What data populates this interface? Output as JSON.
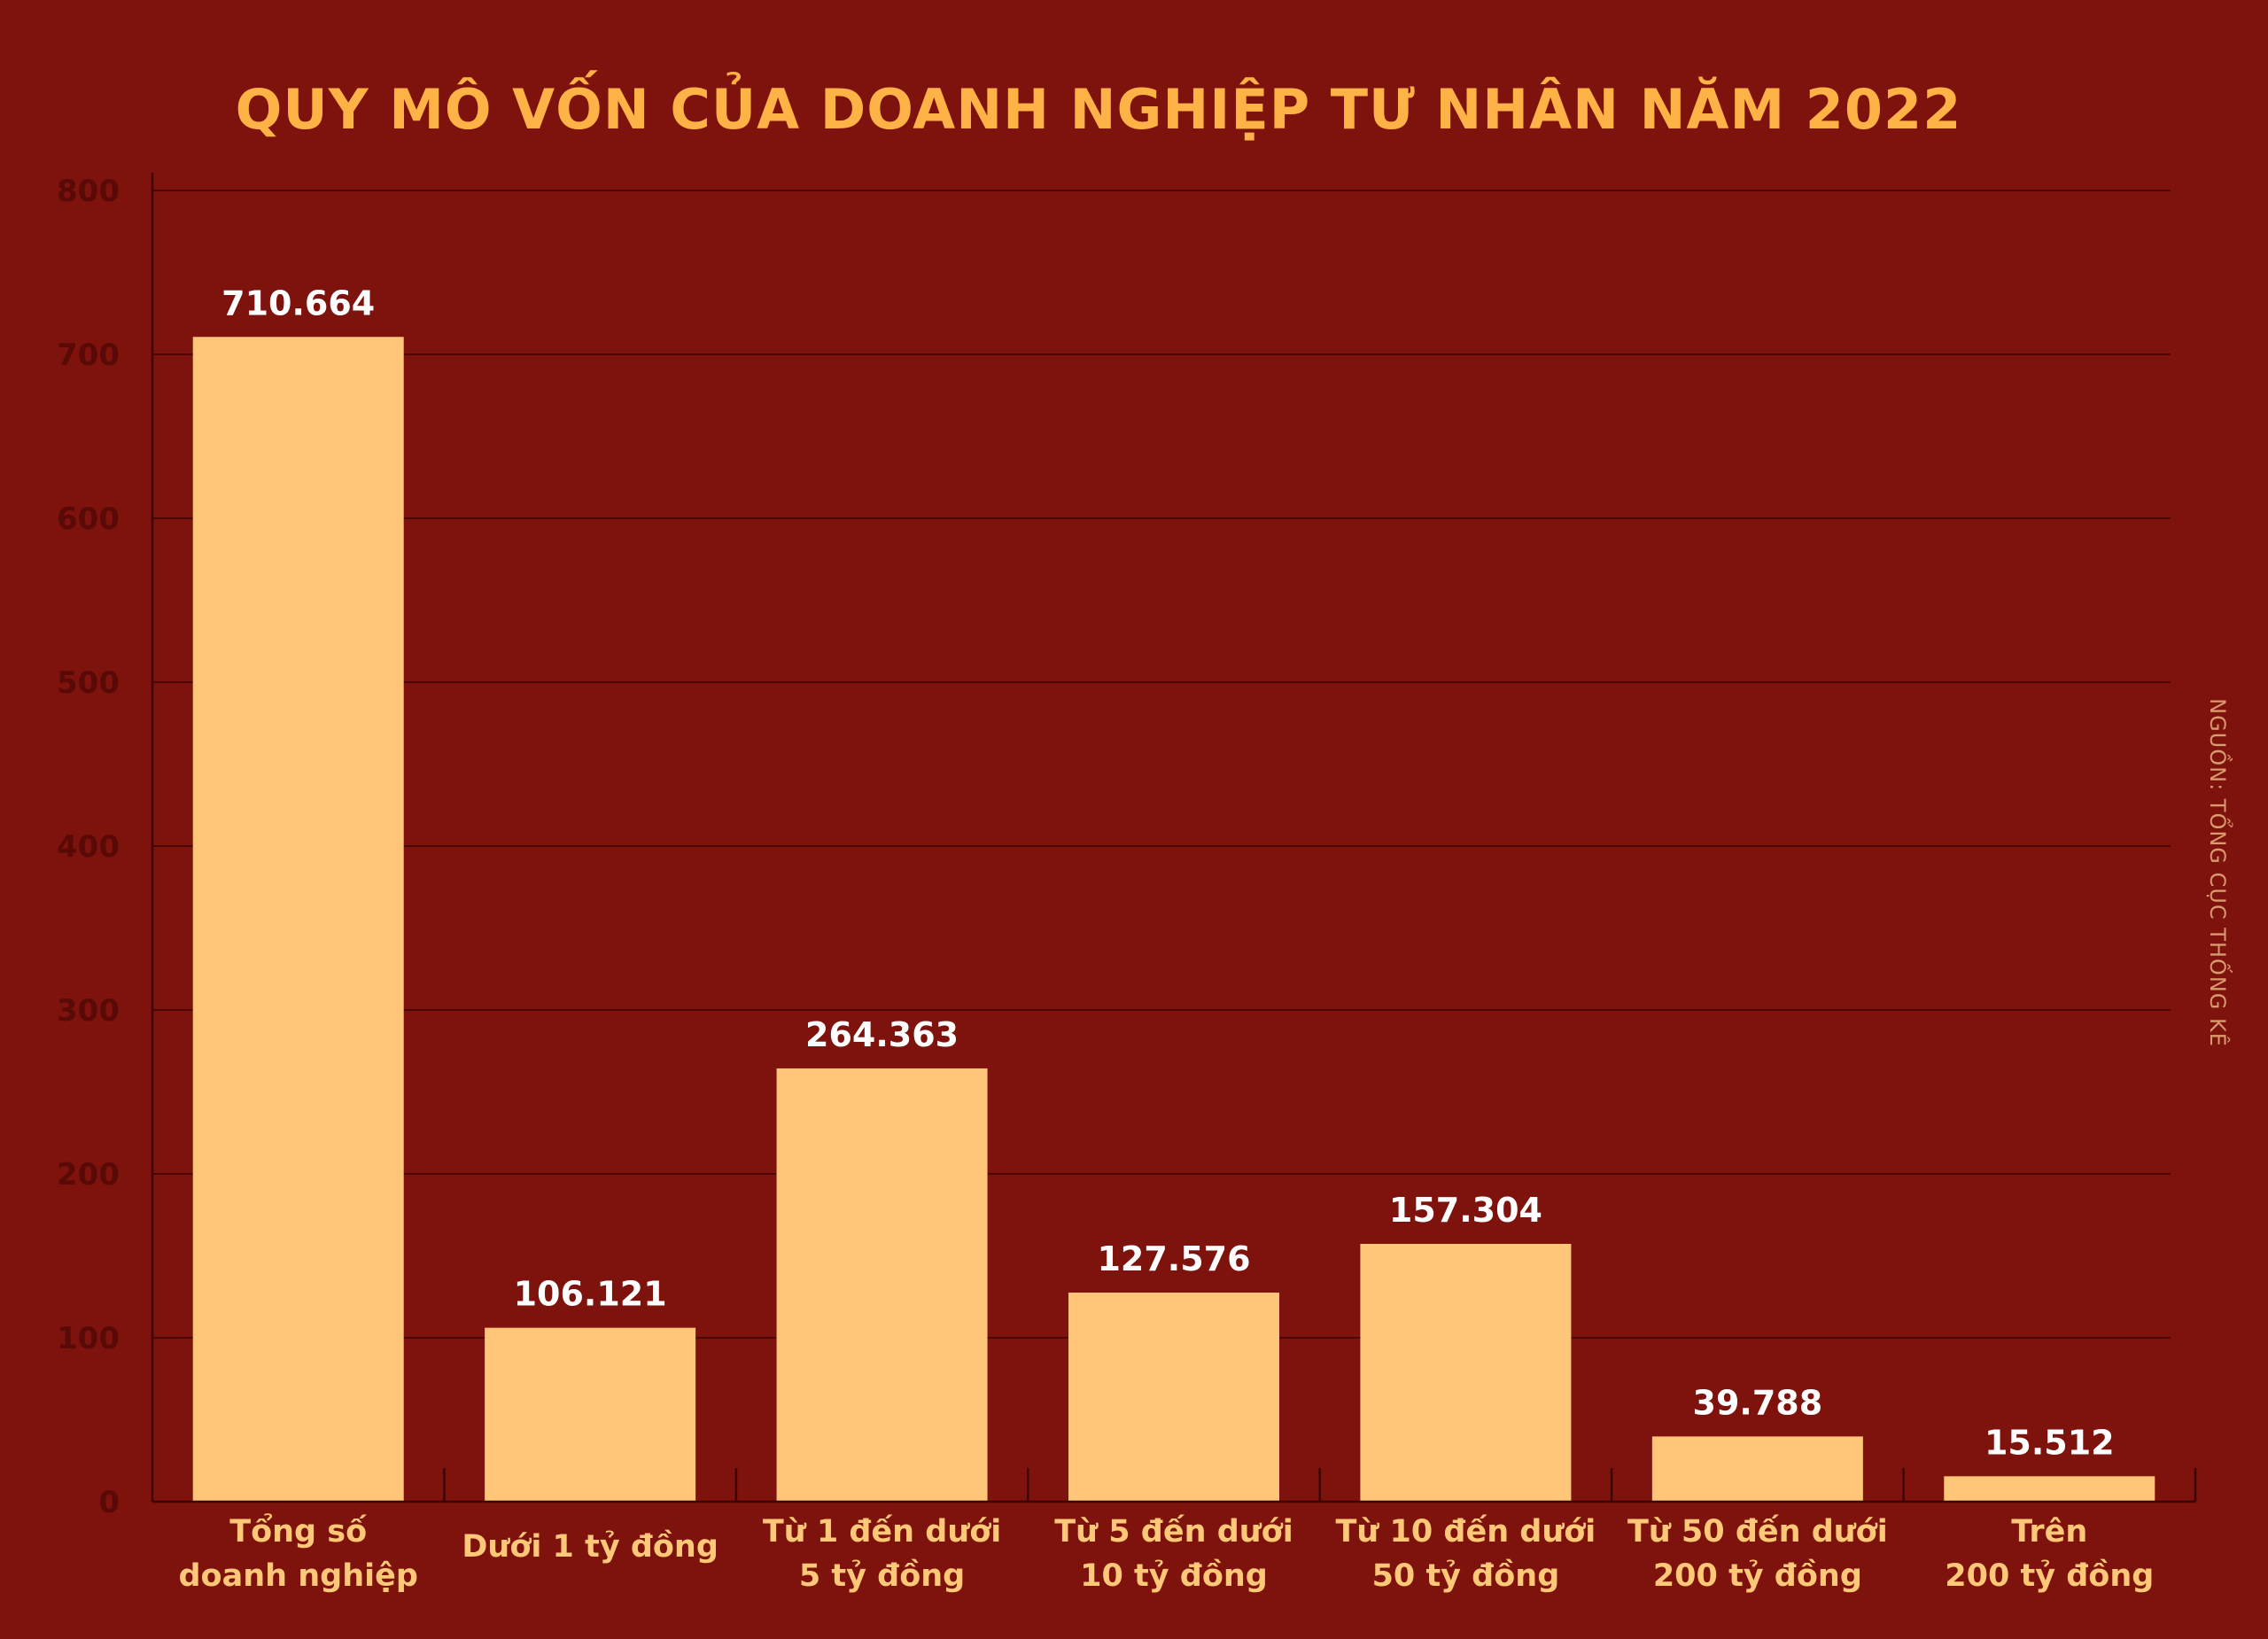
{
  "chart_data": {
    "type": "bar",
    "title": "QUY MÔ VỐN CỦA DOANH NGHIỆP TƯ NHÂN NĂM 2022",
    "categories": [
      [
        "Tổng số",
        "doanh nghiệp"
      ],
      [
        "Dưới 1 tỷ đồng"
      ],
      [
        "Từ 1 đến dưới",
        "5 tỷ đồng"
      ],
      [
        "Từ 5 đến dưới",
        "10 tỷ đồng"
      ],
      [
        "Từ 10 đến dưới",
        "50 tỷ đồng"
      ],
      [
        "Từ 50 đến dưới",
        "200 tỷ đồng"
      ],
      [
        "Trên",
        "200 tỷ đồng"
      ]
    ],
    "values": [
      710.664,
      106.121,
      264.363,
      127.576,
      157.304,
      39.788,
      15.512
    ],
    "value_labels": [
      "710.664",
      "106.121",
      "264.363",
      "127.576",
      "157.304",
      "39.788",
      "15.512"
    ],
    "ylim": [
      0,
      800
    ],
    "yticks": [
      0,
      100,
      200,
      300,
      400,
      500,
      600,
      700,
      800
    ],
    "grid": true,
    "xlabel": "",
    "ylabel": "",
    "source": "NGUỒN: TỔNG CỤC THỐNG KÊ",
    "colors": {
      "background": "#7e120c",
      "bar": "#ffc67a",
      "title": "#ffb347",
      "category_label": "#ffc878",
      "value_label": "#ffffff",
      "y_tick_label": "#5a0a06",
      "grid": "#4a0704",
      "source": "#d89a6e"
    }
  }
}
